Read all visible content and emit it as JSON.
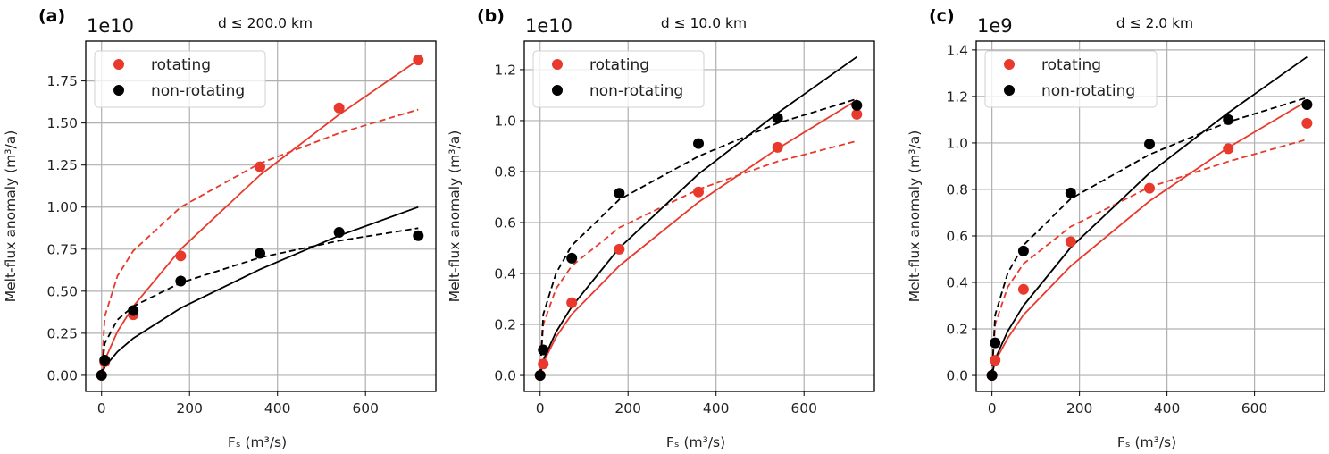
{
  "colors": {
    "rotating": "#e8392c",
    "non_rotating": "#000000",
    "grid": "#b0b0b0"
  },
  "chart_data": [
    {
      "type": "scatter",
      "panel_label": "(a)",
      "title": "d ≤ 200.0 km",
      "xlabel": "Fₛ (m³/s)",
      "ylabel": "Melt-flux anomaly (m³/a)",
      "y_offset_label": "1e10",
      "xlim": [
        -36,
        760
      ],
      "ylim": [
        -0.096,
        1.987
      ],
      "xticks": [
        0,
        200,
        400,
        600
      ],
      "xtick_labels": [
        "0",
        "200",
        "400",
        "600"
      ],
      "yticks": [
        0,
        0.25,
        0.5,
        0.75,
        1.0,
        1.25,
        1.5,
        1.75
      ],
      "ytick_labels": [
        "0.00",
        "0.25",
        "0.50",
        "0.75",
        "1.00",
        "1.25",
        "1.50",
        "1.75"
      ],
      "grid": true,
      "legend": {
        "position": "top-left",
        "entries": [
          "rotating",
          "non-rotating"
        ]
      },
      "x": [
        0,
        7.2,
        72,
        180,
        360,
        540,
        720
      ],
      "series": [
        {
          "name": "rotating",
          "color": "#e8392c",
          "values": [
            0,
            0.08,
            0.36,
            0.71,
            1.24,
            1.59,
            1.875
          ]
        },
        {
          "name": "non-rotating",
          "color": "#000000",
          "values": [
            0,
            0.09,
            0.385,
            0.56,
            0.725,
            0.85,
            0.83
          ]
        }
      ],
      "fit_x": [
        0,
        7.2,
        36,
        72,
        180,
        360,
        540,
        720
      ],
      "fits": [
        {
          "series": "rotating",
          "style": "solid",
          "color": "#e8392c",
          "values": [
            0,
            0.09,
            0.26,
            0.41,
            0.75,
            1.19,
            1.55,
            1.875
          ]
        },
        {
          "series": "rotating",
          "style": "dashed",
          "color": "#e8392c",
          "values": [
            0,
            0.35,
            0.59,
            0.74,
            1.0,
            1.26,
            1.44,
            1.58
          ]
        },
        {
          "series": "non-rotating",
          "style": "solid",
          "color": "#000000",
          "values": [
            0,
            0.05,
            0.14,
            0.22,
            0.4,
            0.63,
            0.83,
            1.0
          ]
        },
        {
          "series": "non-rotating",
          "style": "dashed",
          "color": "#000000",
          "values": [
            0,
            0.19,
            0.33,
            0.41,
            0.55,
            0.7,
            0.8,
            0.875
          ]
        }
      ]
    },
    {
      "type": "scatter",
      "panel_label": "(b)",
      "title": "d ≤ 10.0 km",
      "xlabel": "Fₛ (m³/s)",
      "ylabel": "Melt-flux anomaly (m³/a)",
      "y_offset_label": "1e10",
      "xlim": [
        -36,
        760
      ],
      "ylim": [
        -0.063,
        1.312
      ],
      "xticks": [
        0,
        200,
        400,
        600
      ],
      "xtick_labels": [
        "0",
        "200",
        "400",
        "600"
      ],
      "yticks": [
        0,
        0.2,
        0.4,
        0.6,
        0.8,
        1.0,
        1.2
      ],
      "ytick_labels": [
        "0.0",
        "0.2",
        "0.4",
        "0.6",
        "0.8",
        "1.0",
        "1.2"
      ],
      "grid": true,
      "legend": {
        "position": "top-left",
        "entries": [
          "rotating",
          "non-rotating"
        ]
      },
      "x": [
        0,
        7.2,
        72,
        180,
        360,
        540,
        720
      ],
      "series": [
        {
          "name": "rotating",
          "color": "#e8392c",
          "values": [
            0,
            0.045,
            0.285,
            0.495,
            0.72,
            0.895,
            1.025
          ]
        },
        {
          "name": "non-rotating",
          "color": "#000000",
          "values": [
            0,
            0.1,
            0.46,
            0.715,
            0.91,
            1.01,
            1.06
          ]
        }
      ],
      "fit_x": [
        0,
        7.2,
        36,
        72,
        180,
        360,
        540,
        720
      ],
      "fits": [
        {
          "series": "rotating",
          "style": "solid",
          "color": "#e8392c",
          "values": [
            0,
            0.05,
            0.15,
            0.24,
            0.43,
            0.68,
            0.89,
            1.08
          ]
        },
        {
          "series": "rotating",
          "style": "dashed",
          "color": "#e8392c",
          "values": [
            0,
            0.2,
            0.34,
            0.43,
            0.58,
            0.73,
            0.84,
            0.92
          ]
        },
        {
          "series": "non-rotating",
          "style": "solid",
          "color": "#000000",
          "values": [
            0,
            0.06,
            0.17,
            0.27,
            0.5,
            0.79,
            1.03,
            1.25
          ]
        },
        {
          "series": "non-rotating",
          "style": "dashed",
          "color": "#000000",
          "values": [
            0,
            0.24,
            0.4,
            0.51,
            0.69,
            0.86,
            0.99,
            1.085
          ]
        }
      ]
    },
    {
      "type": "scatter",
      "panel_label": "(c)",
      "title": "d ≤ 2.0 km",
      "xlabel": "Fₛ (m³/s)",
      "ylabel": "Melt-flux anomaly (m³/a)",
      "y_offset_label": "1e9",
      "xlim": [
        -36,
        760
      ],
      "ylim": [
        -0.069,
        1.438
      ],
      "xticks": [
        0,
        200,
        400,
        600
      ],
      "xtick_labels": [
        "0",
        "200",
        "400",
        "600"
      ],
      "yticks": [
        0,
        0.2,
        0.4,
        0.6,
        0.8,
        1.0,
        1.2,
        1.4
      ],
      "ytick_labels": [
        "0.0",
        "0.2",
        "0.4",
        "0.6",
        "0.8",
        "1.0",
        "1.2",
        "1.4"
      ],
      "grid": true,
      "legend": {
        "position": "top-left",
        "entries": [
          "rotating",
          "non-rotating"
        ]
      },
      "x": [
        0,
        7.2,
        72,
        180,
        360,
        540,
        720
      ],
      "series": [
        {
          "name": "rotating",
          "color": "#e8392c",
          "values": [
            0,
            0.065,
            0.37,
            0.575,
            0.805,
            0.975,
            1.085
          ]
        },
        {
          "name": "non-rotating",
          "color": "#000000",
          "values": [
            0,
            0.14,
            0.535,
            0.785,
            0.995,
            1.1,
            1.165
          ]
        }
      ],
      "fit_x": [
        0,
        7.2,
        36,
        72,
        180,
        360,
        540,
        720
      ],
      "fits": [
        {
          "series": "rotating",
          "style": "solid",
          "color": "#e8392c",
          "values": [
            0,
            0.06,
            0.16,
            0.26,
            0.47,
            0.75,
            0.98,
            1.18
          ]
        },
        {
          "series": "rotating",
          "style": "dashed",
          "color": "#e8392c",
          "values": [
            0,
            0.22,
            0.38,
            0.48,
            0.64,
            0.81,
            0.92,
            1.015
          ]
        },
        {
          "series": "non-rotating",
          "style": "solid",
          "color": "#000000",
          "values": [
            0,
            0.07,
            0.19,
            0.3,
            0.55,
            0.87,
            1.13,
            1.37
          ]
        },
        {
          "series": "non-rotating",
          "style": "dashed",
          "color": "#000000",
          "values": [
            0,
            0.26,
            0.44,
            0.56,
            0.76,
            0.95,
            1.09,
            1.195
          ]
        }
      ]
    }
  ]
}
